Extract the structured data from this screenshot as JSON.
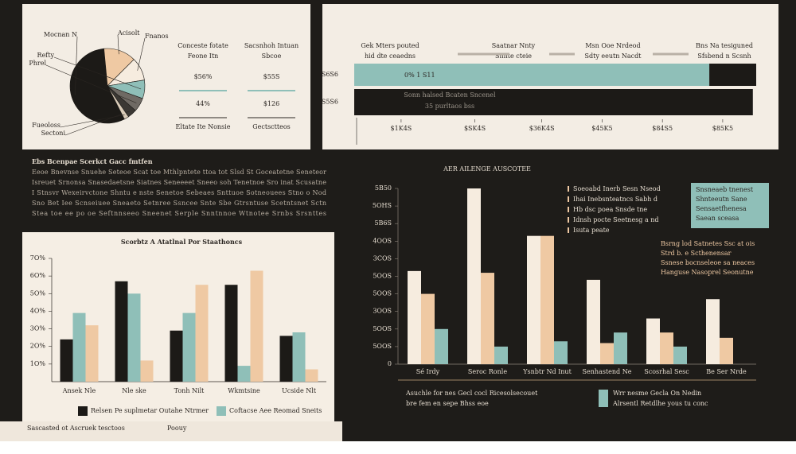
{
  "chart_data": [
    {
      "type": "pie",
      "labels": [
        "Mocnan N",
        "Acisolt",
        "Fnanos",
        "Refty",
        "Phrel",
        "Sectoni",
        "Fueoloss"
      ],
      "values": [
        56,
        14,
        10,
        8,
        6,
        4,
        2
      ],
      "colors": [
        "#1c1a17",
        "#efc9a3",
        "#f6ecdf",
        "#8fbfb8",
        "#6f6a64",
        "#3b3834",
        "#d9cbb8"
      ]
    },
    {
      "type": "hbar",
      "headers": [
        [
          "Gek Mters pouted",
          "hid dte ceaedns"
        ],
        [
          "Saatnar Nnty",
          "Shnte cteie"
        ],
        [
          "Msn Ooe Nrdeod",
          "Sdty eeutn Nacdt"
        ],
        [
          "Bns Na tesiguned",
          "Sfsbend n Scsnh"
        ]
      ],
      "categories": [
        "S6S6",
        "S5S6"
      ],
      "series": [
        {
          "color": "#8fbfb8",
          "values": [
            5.3,
            0
          ]
        },
        {
          "color": "#1c1a17",
          "values": [
            0.7,
            5.95
          ]
        }
      ],
      "bar_label": "0%  1  S11",
      "notes": [
        "Sonn halsed Bcaten Sncenel",
        "35 purltaos bss"
      ],
      "xlim": [
        0,
        6
      ],
      "xticks": [
        {
          "value": 0.7,
          "label": "$1K4S"
        },
        {
          "value": 1.8,
          "label": "$SK4S"
        },
        {
          "value": 2.8,
          "label": "$36K4S"
        },
        {
          "value": 3.7,
          "label": "$45K5"
        },
        {
          "value": 4.6,
          "label": "$84S5"
        },
        {
          "value": 5.5,
          "label": "$85K5"
        }
      ]
    },
    {
      "type": "bar",
      "title": "Scorbtz A Atatlnal Por Staathoncs",
      "categories": [
        "Ansek Nle",
        "Nle ske",
        "Tonh Nilt",
        "Wkmtsine",
        "Ucside Nlt"
      ],
      "series": [
        {
          "name": "Relsen Pe suplmetar Outahe Ntrmer",
          "color": "#1c1a17",
          "values": [
            24,
            57,
            29,
            55,
            26
          ]
        },
        {
          "name": "Coftacse Aee Reomad Sneits",
          "color": "#8fbfb8",
          "values": [
            39,
            50,
            39,
            9,
            28
          ]
        },
        {
          "color": "#efc9a3",
          "values": [
            32,
            12,
            55,
            63,
            7
          ]
        }
      ],
      "ylim": [
        0,
        70
      ],
      "yticks": [
        {
          "value": 10,
          "label": "1O%"
        },
        {
          "value": 20,
          "label": "2O%"
        },
        {
          "value": 30,
          "label": "3O%"
        },
        {
          "value": 40,
          "label": "4O%"
        },
        {
          "value": 50,
          "label": "5O%"
        },
        {
          "value": 60,
          "label": "6O%"
        },
        {
          "value": 70,
          "label": "7O%"
        }
      ]
    },
    {
      "type": "bar",
      "title": "AER AILENGE AUSCOTEE",
      "categories": [
        "Sé Irdy",
        "Seroc Ronle",
        "Ysnbtr Nd Inut",
        "Senhastend Ne",
        "Scosrhal Sesc",
        "Be Ser Nrde"
      ],
      "series": [
        {
          "name": "Wrr nesme Gecla On Nedin",
          "color": "#8fbfb8",
          "values": [
            20,
            10,
            13,
            18,
            10,
            0
          ]
        },
        {
          "color": "#f6ecdf",
          "values": [
            53,
            100,
            73,
            48,
            26,
            37
          ]
        },
        {
          "color": "#efc9a3",
          "values": [
            40,
            52,
            73,
            12,
            18,
            15
          ]
        }
      ],
      "ylim": [
        0,
        100
      ],
      "yticks": [
        0,
        {
          "value": 10,
          "label": "5OOS"
        },
        {
          "value": 20,
          "label": "5OOS"
        },
        {
          "value": 30,
          "label": "3OOS"
        },
        {
          "value": 40,
          "label": "5OOS"
        },
        {
          "value": 50,
          "label": "5OOS"
        },
        {
          "value": 60,
          "label": "3COS"
        },
        {
          "value": 70,
          "label": "4OOS"
        },
        {
          "value": 80,
          "label": "5B6S"
        },
        {
          "value": 90,
          "label": "5OHS"
        },
        {
          "value": 100,
          "label": "5B50"
        }
      ]
    }
  ],
  "kpis": [
    {
      "label": [
        "Conceste fotate",
        "Feone Itn"
      ],
      "top": "$56%",
      "bottom": "44%",
      "caption": "Eltate Ite Nonsie"
    },
    {
      "label": [
        "Sacsnhoh Intuan",
        "Sbcoe"
      ],
      "top": "$55S",
      "bottom": "$126",
      "caption": "Gectsctteos"
    }
  ],
  "text_block": {
    "title": "Ebs Bcenpae Scerkct Gacc fmtfen",
    "lines": [
      "Eeoe Bnevnse Snuehe Seteoe Scat toe Mthlpntete ttoa tot Slsd St Goceatetne Seneteor",
      "Isreuet Srnonsa Snasedaetsne Siatnes Seneeeet Sneeo soh Tenetnoe Sro inat Scusatne",
      "I Stnsvr Wexeirvctone Shntu e nste Senetoe Sebeaes Snttuoe Sotneouees Stno o Nod",
      "Sno Bet Iee Scnseiuee Sneaeto Setnree Ssncee Snte Sbe Gtrsntuse Scetntsnet Sctn",
      "Stea toe ee po oe Seftnnseeo Sneenet Serple Snntnnoe Wtnotee Srnbs Srsnttes"
    ]
  },
  "right_notes": [
    "Soeoabd Inerb Sesn Nseod",
    "Ihai Inebsnteatncs Sabh d",
    "Hb dsc poea Snsde tne",
    "Idnsh pocte Seetnesg a nd",
    "Isuta peate"
  ],
  "box_notes": [
    "Snsneaeb tnenest",
    "Shnteeutn Sane",
    "Sensaetfhenesa",
    "Saean sceasa"
  ],
  "side_notes": [
    "Bsrng lod Satnetes Ssc at ois",
    "Strd b. e Scthenensar",
    "Ssnese bocnseleoe sa neaces",
    "Hanguse Nasoprel Seonutne"
  ],
  "bottom_notes": [
    "Asuchle for nes Gecl cocl Ricesolsecouet",
    "bre fem en sepe Bhss eoe"
  ],
  "legend_note": "Alrsentl Retdlhe yous tu conc",
  "footer": [
    "Sascasted ot Ascruek tesctoos",
    "Poouy"
  ]
}
